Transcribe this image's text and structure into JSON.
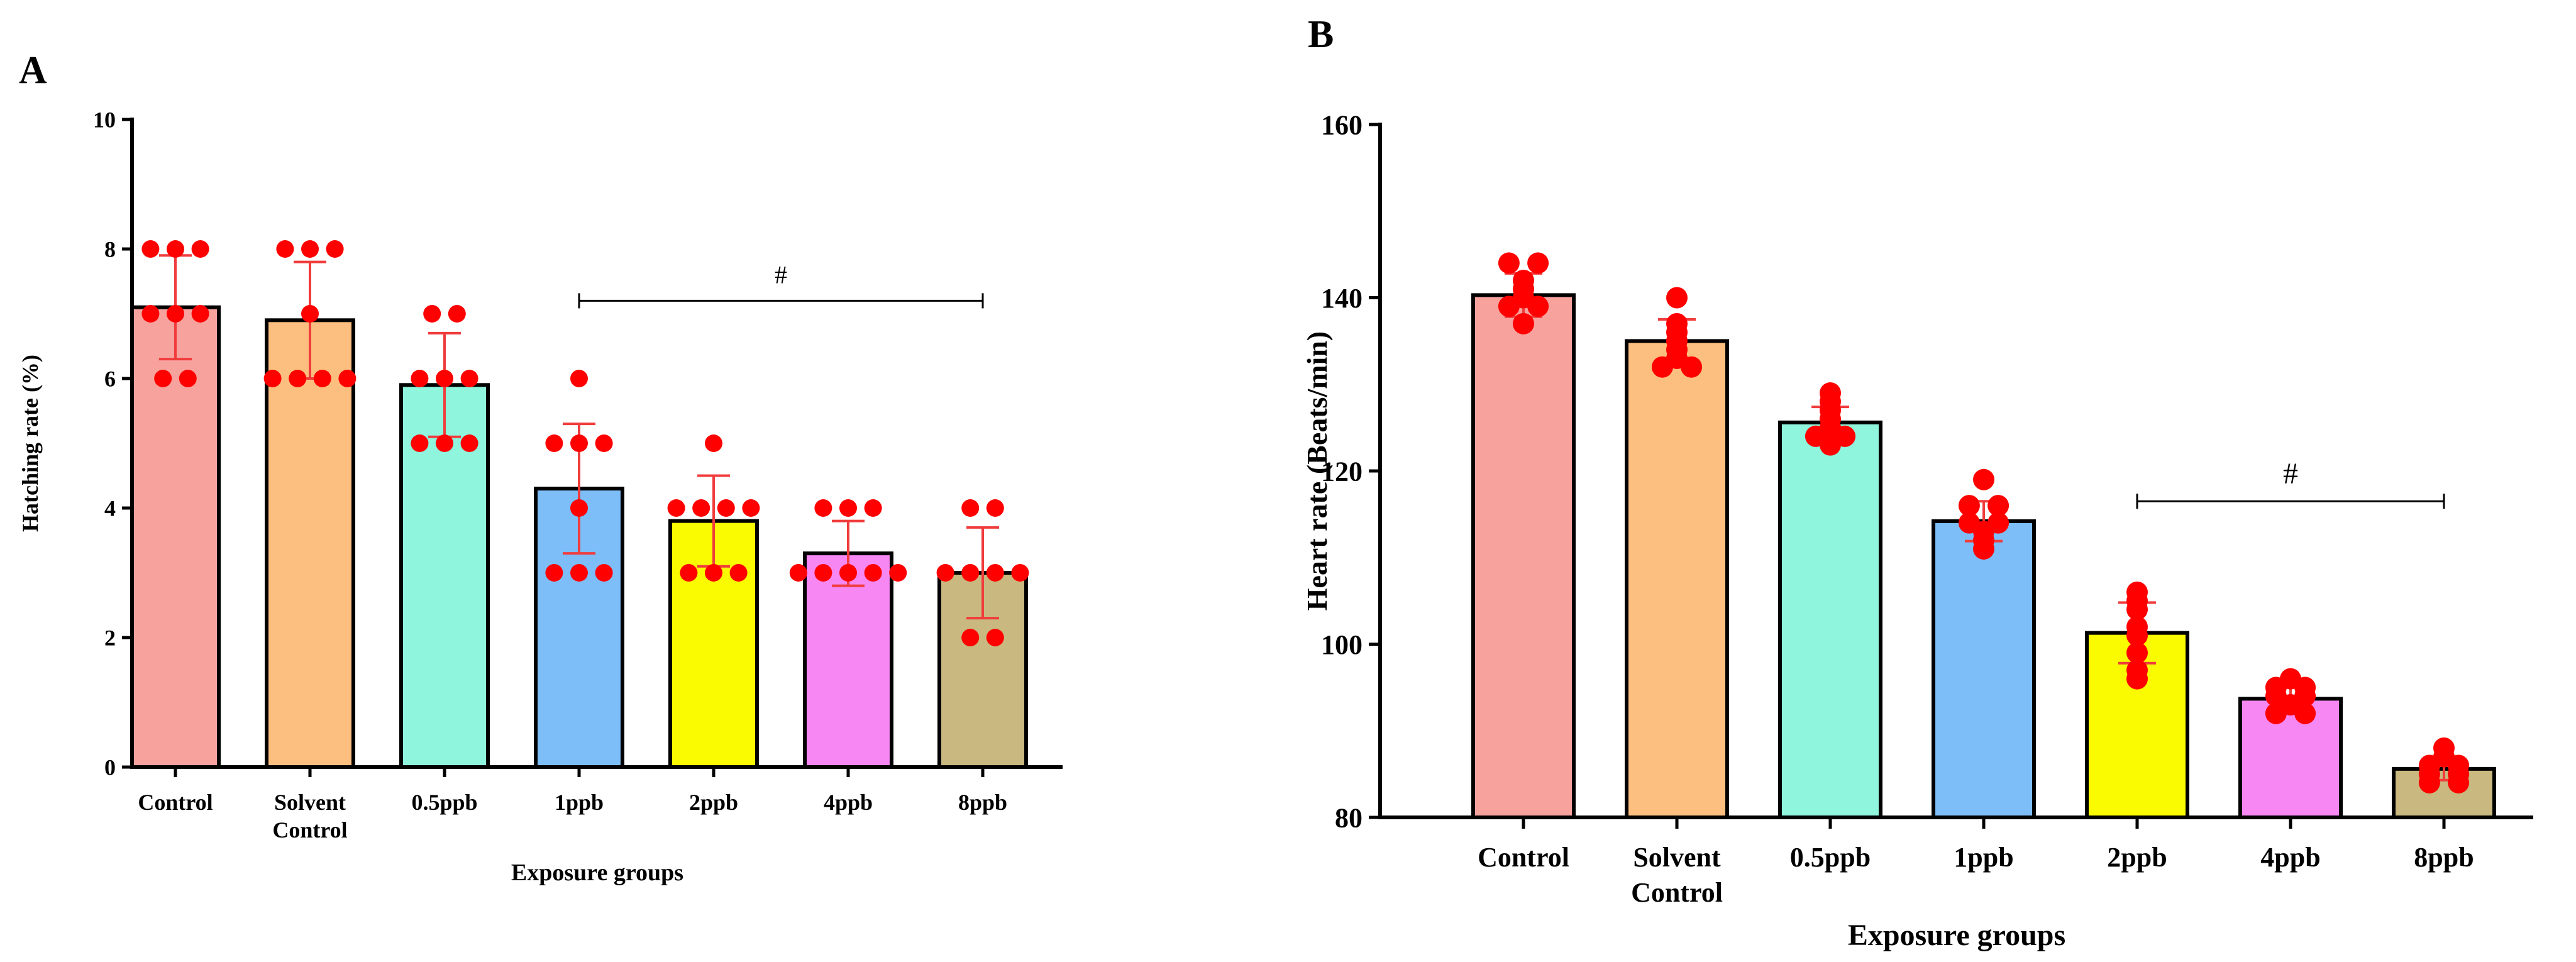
{
  "chart_data": [
    {
      "panel": "A",
      "type": "bar",
      "categories": [
        "Control",
        "Solvent Control",
        "0.5ppb",
        "1ppb",
        "2ppb",
        "4ppb",
        "8ppb"
      ],
      "category_lines": [
        [
          "Control"
        ],
        [
          "Solvent",
          "Control"
        ],
        [
          "0.5ppb"
        ],
        [
          "1ppb"
        ],
        [
          "2ppb"
        ],
        [
          "4ppb"
        ],
        [
          "8ppb"
        ]
      ],
      "values": [
        7.1,
        6.9,
        5.9,
        4.3,
        3.8,
        3.3,
        3.0
      ],
      "errors": [
        0.8,
        0.9,
        0.8,
        1.0,
        0.7,
        0.5,
        0.7
      ],
      "points": [
        [
          8,
          8,
          8,
          7,
          7,
          7,
          6,
          6
        ],
        [
          8,
          8,
          8,
          7,
          6,
          6,
          6,
          6
        ],
        [
          7,
          7,
          6,
          6,
          6,
          5,
          5,
          5
        ],
        [
          6,
          5,
          5,
          5,
          4,
          3,
          3,
          3
        ],
        [
          5,
          4,
          4,
          4,
          4,
          3,
          3,
          3
        ],
        [
          4,
          4,
          4,
          3,
          3,
          3,
          3,
          3
        ],
        [
          4,
          4,
          3,
          3,
          3,
          3,
          2,
          2
        ]
      ],
      "colors": [
        "#F8A29E",
        "#FDBF7F",
        "#8FF5DC",
        "#7EBEF8",
        "#FAFA00",
        "#F787F3",
        "#C9B87F"
      ],
      "point_color": "#FF0000",
      "error_color": "#F03C3C",
      "ylabel": "Hatching rate (%)",
      "xlabel": "Exposure groups",
      "ylim": [
        0,
        10
      ],
      "yticks": [
        "0",
        "2",
        "4",
        "6",
        "8",
        "10"
      ],
      "significance": {
        "label": "#",
        "from": "1ppb",
        "to": "8ppb",
        "y": 7.2
      }
    },
    {
      "panel": "B",
      "type": "bar",
      "categories": [
        "Control",
        "Solvent Control",
        "0.5ppb",
        "1ppb",
        "2ppb",
        "4ppb",
        "8ppb"
      ],
      "category_lines": [
        [
          "Control"
        ],
        [
          "Solvent",
          "Control"
        ],
        [
          "0.5ppb"
        ],
        [
          "1ppb"
        ],
        [
          "2ppb"
        ],
        [
          "4ppb"
        ],
        [
          "8ppb"
        ]
      ],
      "values": [
        140.3,
        135.0,
        125.6,
        114.2,
        101.3,
        93.7,
        85.6
      ],
      "errors": [
        2.5,
        2.5,
        1.8,
        2.3,
        3.5,
        1.3,
        1.3
      ],
      "points": [
        [
          144,
          144,
          142,
          141,
          140,
          139,
          139,
          137
        ],
        [
          140,
          137,
          136,
          135,
          134,
          133,
          132,
          132
        ],
        [
          129,
          128,
          127,
          126,
          125,
          124,
          124,
          123
        ],
        [
          119,
          116,
          116,
          114,
          114,
          113,
          112,
          111
        ],
        [
          106,
          105,
          104,
          102,
          101,
          99,
          97,
          96
        ],
        [
          96,
          95,
          95,
          94,
          94,
          93,
          92,
          92
        ],
        [
          88,
          87,
          86,
          86,
          85,
          85,
          84,
          84
        ]
      ],
      "colors": [
        "#F8A29E",
        "#FDBF7F",
        "#8FF5DC",
        "#7EBEF8",
        "#FAFA00",
        "#F787F3",
        "#C9B87F"
      ],
      "point_color": "#FF0000",
      "error_color": "#F03C3C",
      "ylabel": "Heart rate (Beats/min)",
      "xlabel": "Exposure groups",
      "ylim": [
        80,
        160
      ],
      "yticks": [
        "80",
        "100",
        "120",
        "140",
        "160"
      ],
      "significance": {
        "label": "#",
        "from": "2ppb",
        "to": "8ppb",
        "y": 116.5
      }
    }
  ]
}
